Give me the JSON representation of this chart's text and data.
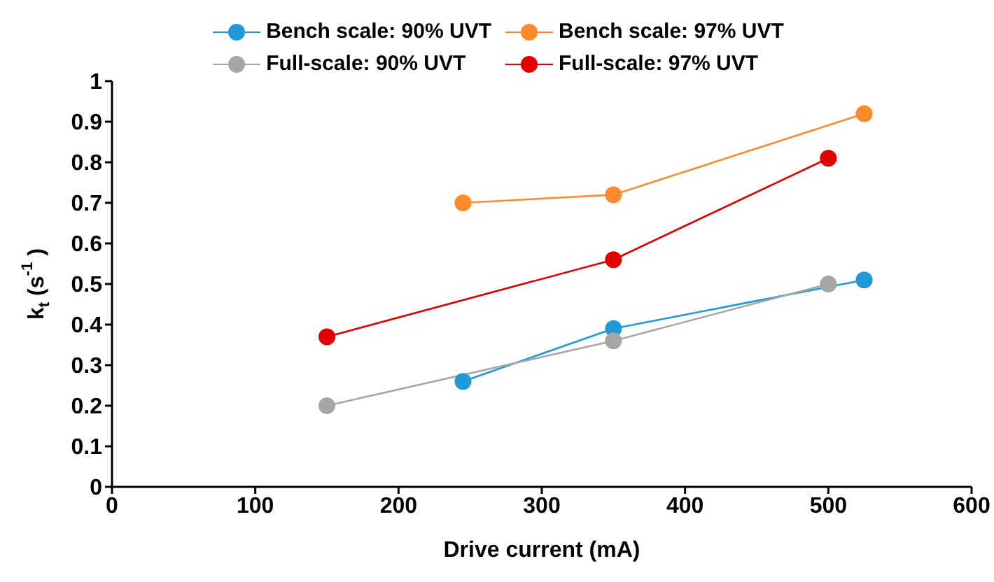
{
  "chart_data": {
    "type": "line",
    "xlabel": "Drive current (mA)",
    "ylabel": "k$_{t}$ (s$^{-1}$)",
    "series": [
      {
        "name": "Bench scale: 90% UVT",
        "color": "#1f9ad6",
        "x": [
          245,
          350,
          525
        ],
        "values": [
          0.26,
          0.39,
          0.51
        ]
      },
      {
        "name": "Bench scale: 97% UVT",
        "color": "#ff8a2b",
        "x": [
          245,
          350,
          525
        ],
        "values": [
          0.7,
          0.72,
          0.92
        ]
      },
      {
        "name": "Full-scale: 90% UVT",
        "color": "#a6a6a6",
        "x": [
          150,
          350,
          500
        ],
        "values": [
          0.2,
          0.36,
          0.5
        ]
      },
      {
        "name": "Full-scale: 97% UVT",
        "color": "#e00000",
        "x": [
          150,
          350,
          500
        ],
        "values": [
          0.37,
          0.56,
          0.81
        ]
      }
    ],
    "xlim": [
      0,
      600
    ],
    "xticks": [
      0,
      100,
      200,
      300,
      400,
      500,
      600
    ],
    "ylim": [
      0,
      1
    ],
    "yticks": [
      0,
      0.1,
      0.2,
      0.3,
      0.4,
      0.5,
      0.6,
      0.7,
      0.8,
      0.9,
      1
    ],
    "grid": false,
    "legend": "top",
    "marker": "circle",
    "line_style": "solid"
  }
}
